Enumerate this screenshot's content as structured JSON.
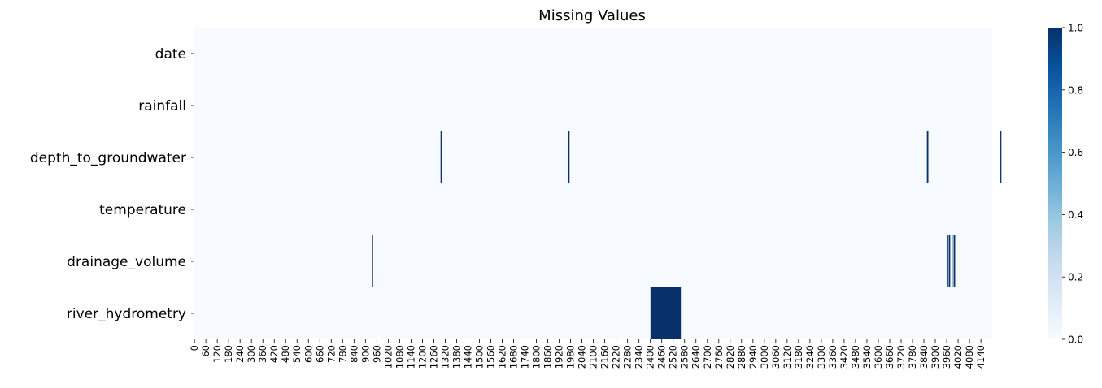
{
  "chart_data": {
    "type": "heatmap",
    "title": "Missing Values",
    "rows": [
      "date",
      "rainfall",
      "depth_to_groundwater",
      "temperature",
      "drainage_volume",
      "river_hydrometry"
    ],
    "x_range": [
      0,
      4199
    ],
    "x_tick_step": 60,
    "x_tick_labels": [
      "0",
      "60",
      "120",
      "180",
      "240",
      "300",
      "360",
      "420",
      "480",
      "540",
      "600",
      "660",
      "720",
      "780",
      "840",
      "900",
      "960",
      "1020",
      "1080",
      "1140",
      "1200",
      "1260",
      "1320",
      "1380",
      "1440",
      "1500",
      "1560",
      "1620",
      "1680",
      "1740",
      "1800",
      "1860",
      "1920",
      "1980",
      "2040",
      "2100",
      "2160",
      "2220",
      "2280",
      "2340",
      "2400",
      "2460",
      "2520",
      "2580",
      "2640",
      "2700",
      "2760",
      "2820",
      "2880",
      "2940",
      "3000",
      "3060",
      "3120",
      "3180",
      "3240",
      "3300",
      "3360",
      "3420",
      "3480",
      "3540",
      "3600",
      "3660",
      "3720",
      "3780",
      "3840",
      "3900",
      "3960",
      "4020",
      "4080",
      "4140"
    ],
    "missing_segments": [
      {
        "row": "depth_to_groundwater",
        "start": 1296,
        "end": 1304
      },
      {
        "row": "depth_to_groundwater",
        "start": 1967,
        "end": 1975
      },
      {
        "row": "depth_to_groundwater",
        "start": 3856,
        "end": 3864
      },
      {
        "row": "depth_to_groundwater",
        "start": 4243,
        "end": 4246
      },
      {
        "row": "drainage_volume",
        "start": 935,
        "end": 939
      },
      {
        "row": "drainage_volume",
        "start": 3960,
        "end": 3968
      },
      {
        "row": "drainage_volume",
        "start": 3971,
        "end": 3979
      },
      {
        "row": "drainage_volume",
        "start": 3986,
        "end": 3990
      },
      {
        "row": "drainage_volume",
        "start": 3997,
        "end": 4005
      },
      {
        "row": "river_hydrometry",
        "start": 2401,
        "end": 2561
      }
    ],
    "colorbar": {
      "min": 0.0,
      "max": 1.0,
      "ticks": [
        "0.0",
        "0.2",
        "0.4",
        "0.6",
        "0.8",
        "1.0"
      ],
      "colormap": "Blues",
      "low_color": "#f7fbff",
      "high_color": "#08306b"
    },
    "grid": false,
    "legend": "right"
  }
}
